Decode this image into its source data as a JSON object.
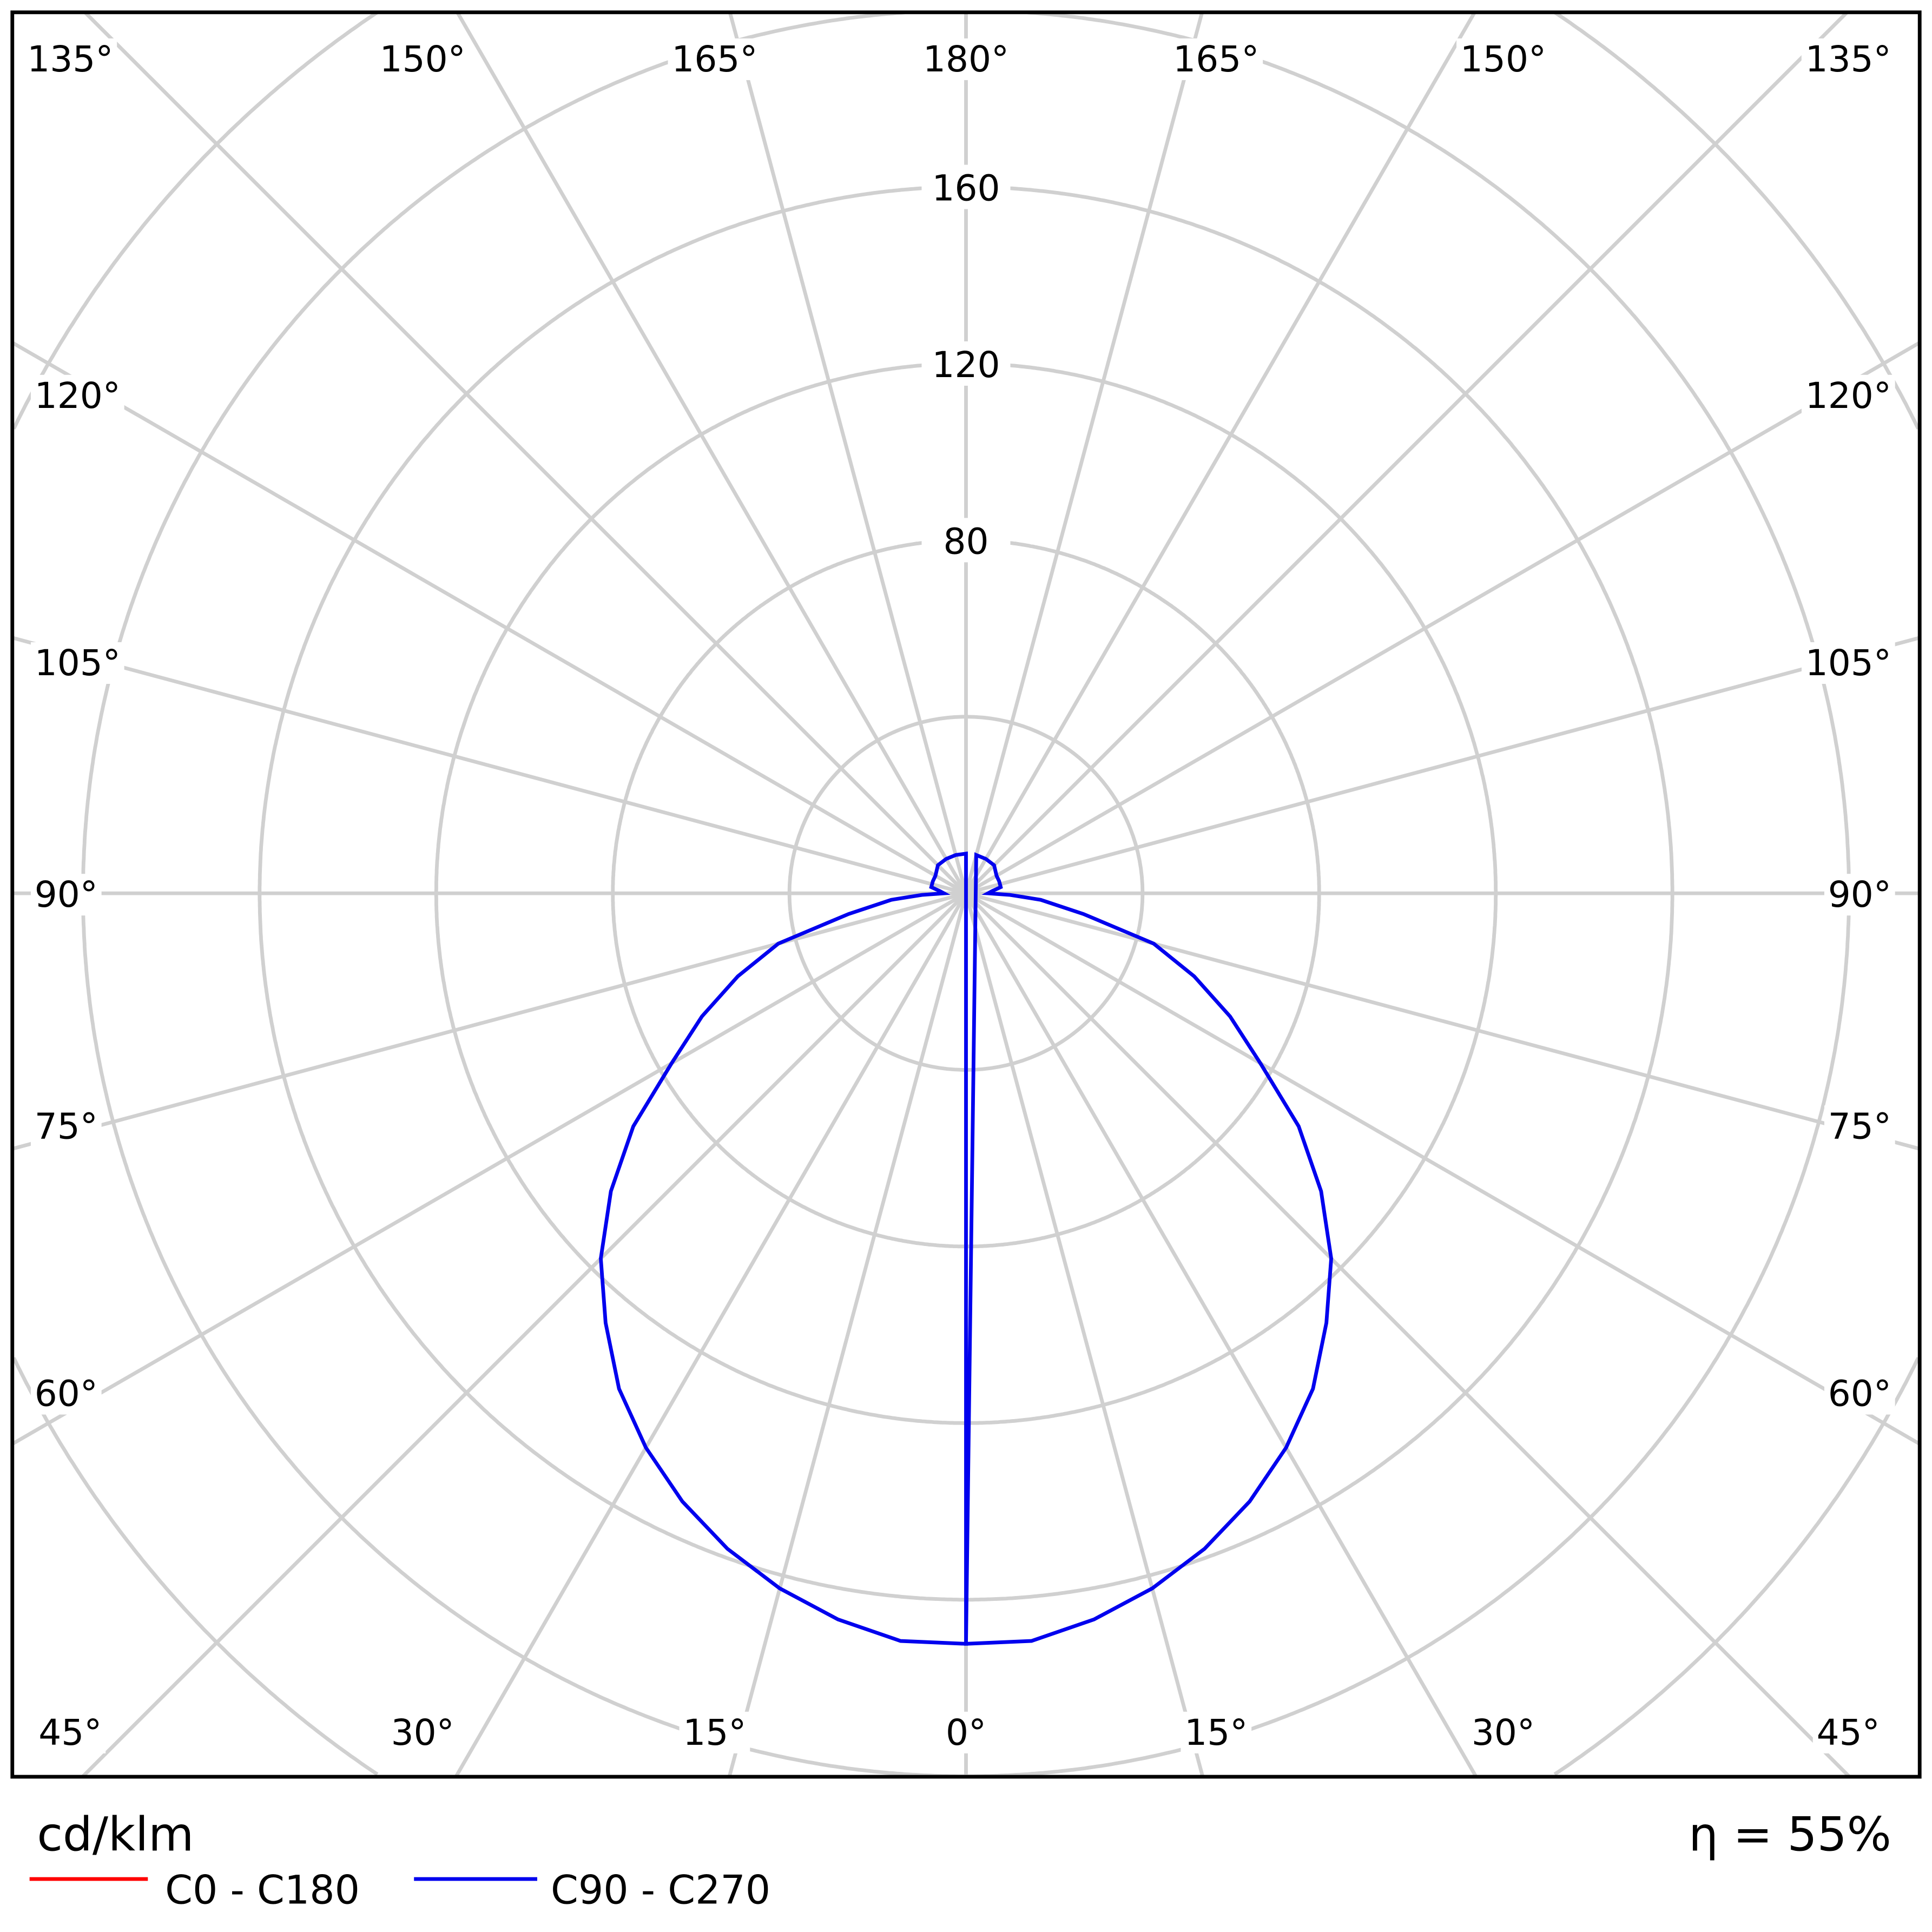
{
  "chart_data": {
    "type": "polar-line",
    "unit_label": "cd/klm",
    "efficiency_label": "η = 55%",
    "radial_ticks": [
      80,
      120,
      160
    ],
    "radial_rings": [
      40,
      80,
      120,
      160,
      200
    ],
    "angle_labels": {
      "top": [
        "135°",
        "150°",
        "165°",
        "180°",
        "165°",
        "150°",
        "135°"
      ],
      "left": [
        "120°",
        "105°",
        "90°",
        "75°",
        "60°"
      ],
      "right": [
        "120°",
        "105°",
        "90°",
        "75°",
        "60°"
      ],
      "bottom": [
        "45°",
        "30°",
        "15°",
        "0°",
        "15°",
        "30°",
        "45°"
      ]
    },
    "grid": true,
    "legend_position": "bottom-left",
    "series": [
      {
        "name": "C0 - C180",
        "color": "#ff0000",
        "gamma": [],
        "values": []
      },
      {
        "name": "C90 - C270",
        "color": "#0000ee",
        "gamma": [
          0,
          5,
          10,
          15,
          20,
          25,
          30,
          35,
          40,
          45,
          50,
          55,
          60,
          65,
          70,
          75,
          80,
          85,
          88,
          90,
          95,
          100,
          110,
          120,
          135,
          150,
          165,
          180
        ],
        "values": [
          170,
          170,
          167,
          163,
          158,
          152,
          145,
          137,
          127,
          117,
          105,
          92,
          77,
          66,
          55,
          44,
          27,
          17,
          10,
          5,
          6,
          8,
          8,
          8,
          9,
          9,
          9,
          9
        ]
      }
    ]
  }
}
